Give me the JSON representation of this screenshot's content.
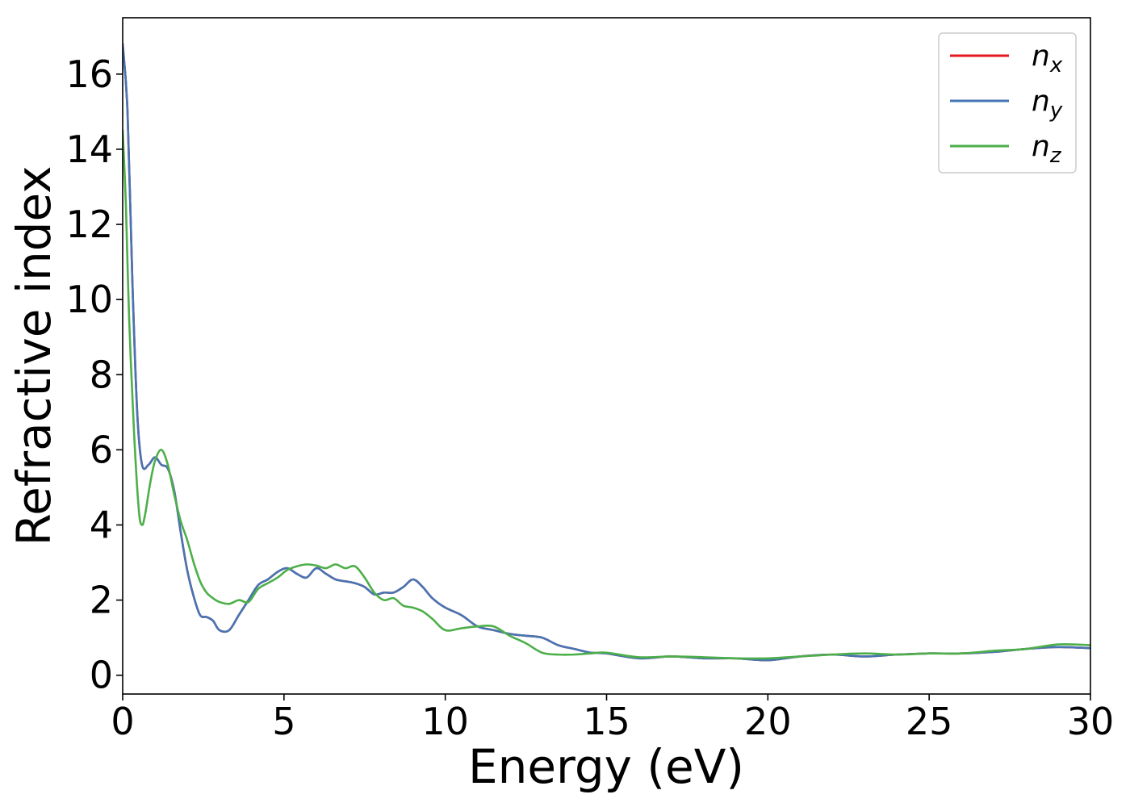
{
  "chart_data": {
    "type": "line",
    "title": "",
    "xlabel": "Energy (eV)",
    "ylabel": "Refractive index",
    "xlim": [
      0,
      30
    ],
    "ylim": [
      -0.5,
      17.5
    ],
    "xticks": [
      0,
      5,
      10,
      15,
      20,
      25,
      30
    ],
    "yticks": [
      0,
      2,
      4,
      6,
      8,
      10,
      12,
      14,
      16
    ],
    "grid": false,
    "legend_position": "top-right",
    "series": [
      {
        "name": "n",
        "subscript": "x",
        "color": "#e41a1c",
        "x": [
          0,
          0.15,
          0.3,
          0.45,
          0.6,
          0.8,
          1.0,
          1.2,
          1.4,
          1.6,
          1.8,
          2.0,
          2.2,
          2.4,
          2.6,
          2.8,
          3.0,
          3.3,
          3.6,
          3.9,
          4.2,
          4.5,
          4.8,
          5.1,
          5.4,
          5.7,
          6.0,
          6.3,
          6.6,
          6.9,
          7.2,
          7.5,
          7.8,
          8.1,
          8.4,
          8.7,
          9.0,
          9.3,
          9.6,
          10.0,
          10.5,
          11.0,
          11.5,
          12.0,
          12.5,
          13.0,
          13.5,
          14.0,
          14.5,
          15.0,
          16.0,
          17.0,
          18.0,
          19.0,
          20.0,
          21.0,
          22.0,
          23.0,
          24.0,
          25.0,
          26.0,
          27.0,
          28.0,
          29.0,
          30.0
        ],
        "y": [
          16.8,
          15.0,
          10.5,
          7.0,
          5.6,
          5.6,
          5.8,
          5.6,
          5.5,
          4.9,
          3.8,
          2.8,
          2.1,
          1.6,
          1.55,
          1.45,
          1.2,
          1.2,
          1.6,
          2.0,
          2.4,
          2.55,
          2.75,
          2.85,
          2.7,
          2.6,
          2.85,
          2.7,
          2.55,
          2.5,
          2.45,
          2.35,
          2.15,
          2.2,
          2.2,
          2.35,
          2.55,
          2.35,
          2.05,
          1.8,
          1.6,
          1.3,
          1.2,
          1.1,
          1.05,
          1.0,
          0.8,
          0.7,
          0.6,
          0.58,
          0.45,
          0.5,
          0.45,
          0.45,
          0.4,
          0.5,
          0.55,
          0.5,
          0.55,
          0.58,
          0.58,
          0.62,
          0.7,
          0.75,
          0.72
        ]
      },
      {
        "name": "n",
        "subscript": "y",
        "color": "#4575b4",
        "x": [
          0,
          0.15,
          0.3,
          0.45,
          0.6,
          0.8,
          1.0,
          1.2,
          1.4,
          1.6,
          1.8,
          2.0,
          2.2,
          2.4,
          2.6,
          2.8,
          3.0,
          3.3,
          3.6,
          3.9,
          4.2,
          4.5,
          4.8,
          5.1,
          5.4,
          5.7,
          6.0,
          6.3,
          6.6,
          6.9,
          7.2,
          7.5,
          7.8,
          8.1,
          8.4,
          8.7,
          9.0,
          9.3,
          9.6,
          10.0,
          10.5,
          11.0,
          11.5,
          12.0,
          12.5,
          13.0,
          13.5,
          14.0,
          14.5,
          15.0,
          16.0,
          17.0,
          18.0,
          19.0,
          20.0,
          21.0,
          22.0,
          23.0,
          24.0,
          25.0,
          26.0,
          27.0,
          28.0,
          29.0,
          30.0
        ],
        "y": [
          16.8,
          15.0,
          10.5,
          7.0,
          5.6,
          5.6,
          5.8,
          5.6,
          5.5,
          4.9,
          3.8,
          2.8,
          2.1,
          1.6,
          1.55,
          1.45,
          1.2,
          1.2,
          1.6,
          2.0,
          2.4,
          2.55,
          2.75,
          2.85,
          2.7,
          2.6,
          2.85,
          2.7,
          2.55,
          2.5,
          2.45,
          2.35,
          2.15,
          2.2,
          2.2,
          2.35,
          2.55,
          2.35,
          2.05,
          1.8,
          1.6,
          1.3,
          1.2,
          1.1,
          1.05,
          1.0,
          0.8,
          0.7,
          0.6,
          0.58,
          0.45,
          0.5,
          0.45,
          0.45,
          0.4,
          0.5,
          0.55,
          0.5,
          0.55,
          0.58,
          0.58,
          0.62,
          0.7,
          0.75,
          0.72
        ]
      },
      {
        "name": "n",
        "subscript": "z",
        "color": "#4daf4a",
        "x": [
          0,
          0.1,
          0.2,
          0.35,
          0.5,
          0.6,
          0.7,
          0.85,
          1.0,
          1.2,
          1.4,
          1.6,
          1.8,
          2.0,
          2.2,
          2.4,
          2.6,
          2.8,
          3.0,
          3.3,
          3.6,
          3.9,
          4.2,
          4.5,
          4.8,
          5.1,
          5.4,
          5.7,
          6.0,
          6.3,
          6.6,
          6.9,
          7.2,
          7.5,
          7.8,
          8.1,
          8.4,
          8.7,
          9.0,
          9.3,
          9.6,
          10.0,
          10.5,
          11.0,
          11.5,
          12.0,
          12.5,
          13.0,
          13.5,
          14.0,
          14.5,
          15.0,
          16.0,
          17.0,
          18.0,
          19.0,
          20.0,
          21.0,
          22.0,
          23.0,
          24.0,
          25.0,
          26.0,
          27.0,
          28.0,
          29.0,
          30.0
        ],
        "y": [
          14.5,
          12.5,
          9.5,
          6.5,
          4.4,
          4.0,
          4.3,
          5.1,
          5.7,
          6.0,
          5.6,
          4.8,
          4.1,
          3.6,
          3.0,
          2.5,
          2.2,
          2.05,
          1.95,
          1.9,
          2.0,
          1.95,
          2.3,
          2.45,
          2.6,
          2.8,
          2.9,
          2.95,
          2.92,
          2.85,
          2.95,
          2.85,
          2.9,
          2.6,
          2.2,
          2.0,
          2.05,
          1.85,
          1.8,
          1.7,
          1.5,
          1.2,
          1.25,
          1.3,
          1.3,
          1.05,
          0.85,
          0.6,
          0.55,
          0.55,
          0.58,
          0.6,
          0.48,
          0.5,
          0.48,
          0.45,
          0.45,
          0.5,
          0.55,
          0.58,
          0.55,
          0.58,
          0.58,
          0.65,
          0.7,
          0.82,
          0.8
        ]
      }
    ]
  }
}
